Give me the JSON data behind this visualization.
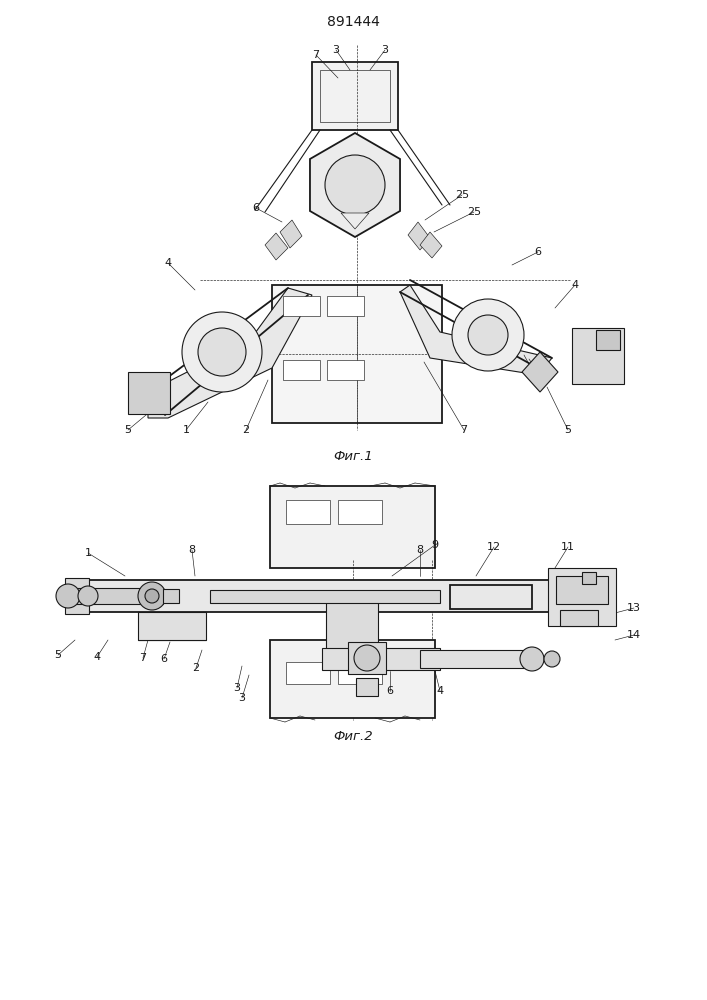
{
  "title": "891444",
  "fig1_caption": "Фиг.1",
  "fig2_caption": "Фиг.2",
  "bg_color": "#ffffff",
  "line_color": "#1a1a1a",
  "lw": 0.8,
  "lw_thin": 0.45,
  "lw_thick": 1.3
}
